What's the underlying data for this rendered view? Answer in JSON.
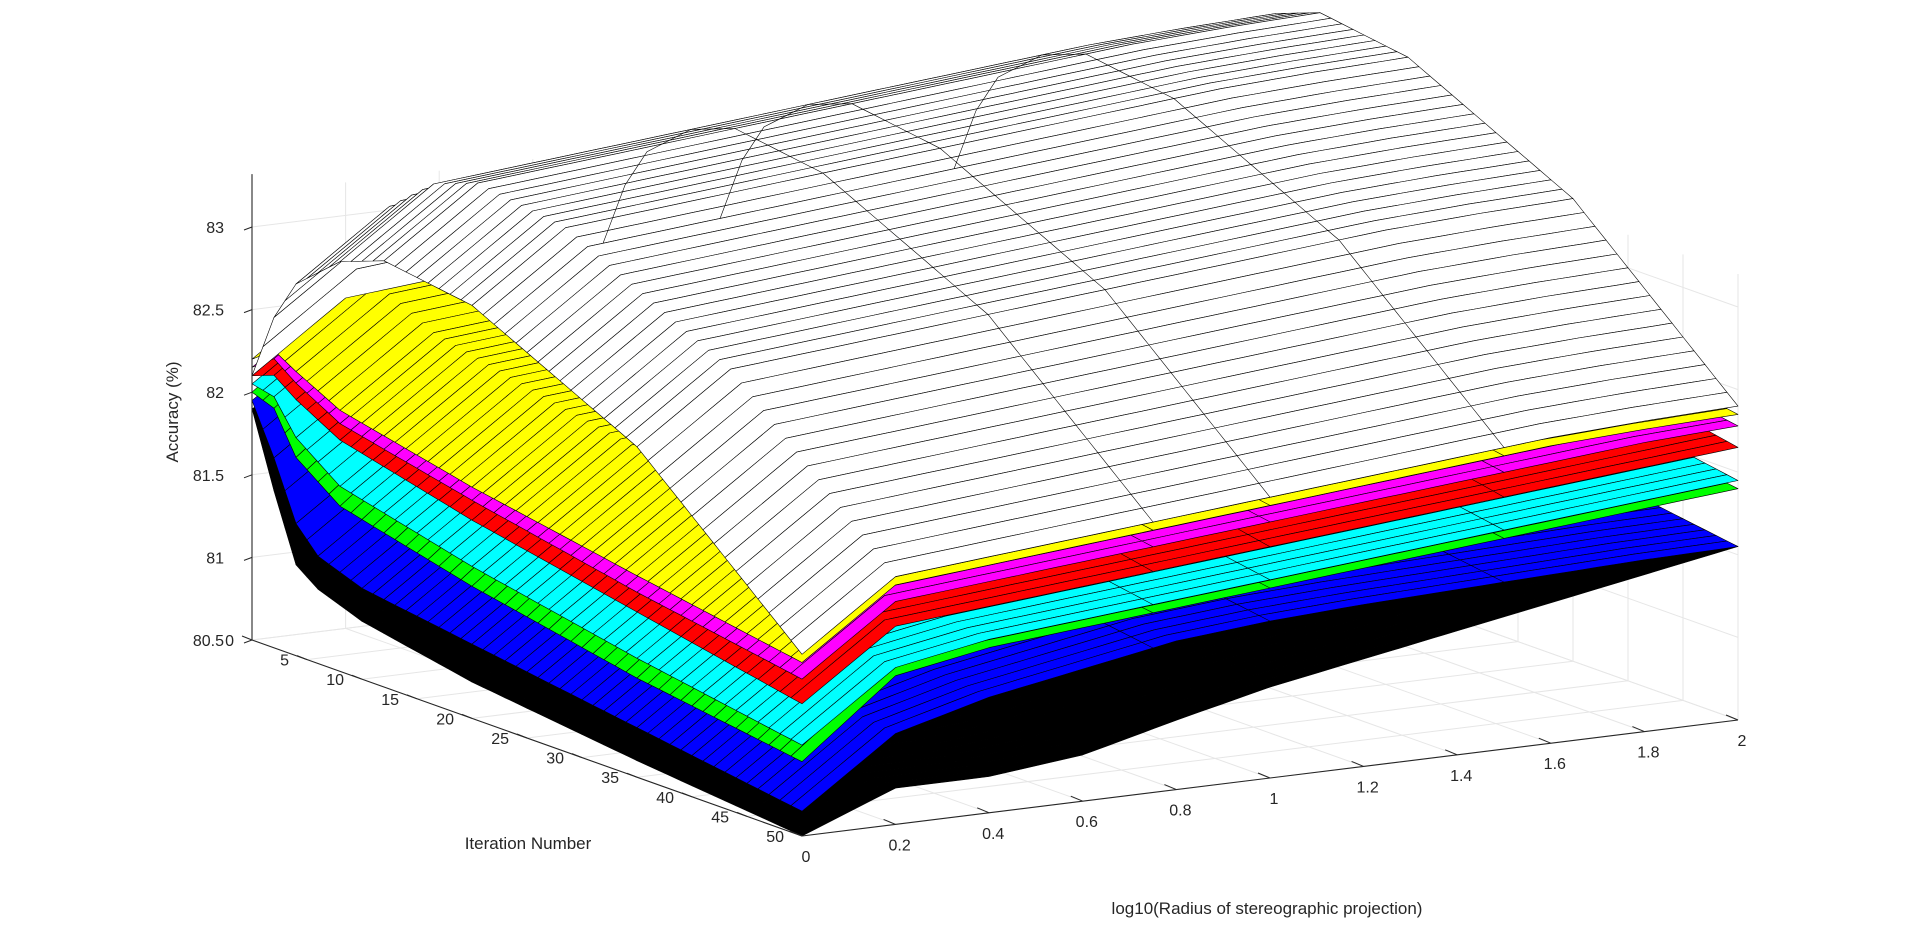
{
  "chart_data": {
    "type": "surface",
    "xlabel": "log10(Radius of stereographic projection)",
    "ylabel": "Iteration Number",
    "zlabel": "Accuracy (%)",
    "xlim": [
      0,
      2
    ],
    "ylim": [
      0,
      50
    ],
    "zlim": [
      80.5,
      83.2
    ],
    "x_ticks": [
      "0",
      "0.2",
      "0.4",
      "0.6",
      "0.8",
      "1",
      "1.2",
      "1.4",
      "1.6",
      "1.8",
      "2"
    ],
    "y_ticks": [
      "0",
      "5",
      "10",
      "15",
      "20",
      "25",
      "30",
      "35",
      "40",
      "45",
      "50"
    ],
    "z_ticks": [
      "80.5",
      "81",
      "81.5",
      "82",
      "82.5",
      "83"
    ],
    "grid": true,
    "x_values": [
      0,
      0.2,
      0.4,
      0.6,
      0.8,
      1.0,
      1.2,
      1.4,
      1.6,
      1.8,
      2.0
    ],
    "series": [
      {
        "color": "#000000",
        "values_at_iteration_50": [
          80.5,
          80.72,
          80.72,
          80.78,
          80.92,
          81.05,
          81.15,
          81.25,
          81.35,
          81.45,
          81.55
        ],
        "iteration_profile": [
          [
            0,
            81.9
          ],
          [
            2,
            81.45
          ],
          [
            4,
            81.05
          ],
          [
            6,
            80.95
          ],
          [
            10,
            80.85
          ],
          [
            20,
            80.72
          ],
          [
            35,
            80.6
          ],
          [
            50,
            80.5
          ]
        ]
      },
      {
        "color": "#0000ff",
        "values_at_iteration_50": [
          80.65,
          81.05,
          81.2,
          81.3,
          81.4,
          81.45,
          81.48,
          81.5,
          81.52,
          81.54,
          81.55
        ],
        "iteration_profile": [
          [
            0,
            81.95
          ],
          [
            2,
            81.65
          ],
          [
            4,
            81.3
          ],
          [
            6,
            81.15
          ],
          [
            10,
            81.05
          ],
          [
            20,
            80.95
          ],
          [
            35,
            80.8
          ],
          [
            50,
            80.65
          ]
        ]
      },
      {
        "color": "#00ff00",
        "values_at_iteration_50": [
          80.95,
          81.4,
          81.5,
          81.55,
          81.6,
          81.65,
          81.7,
          81.75,
          81.8,
          81.85,
          81.9
        ],
        "iteration_profile": [
          [
            0,
            82.0
          ],
          [
            2,
            81.95
          ],
          [
            4,
            81.7
          ],
          [
            8,
            81.5
          ],
          [
            20,
            81.3
          ],
          [
            35,
            81.1
          ],
          [
            50,
            80.95
          ]
        ]
      },
      {
        "color": "#00ffff",
        "values_at_iteration_50": [
          81.05,
          81.45,
          81.55,
          81.6,
          81.65,
          81.7,
          81.75,
          81.8,
          81.85,
          81.9,
          81.95
        ],
        "iteration_profile": [
          [
            0,
            82.05
          ],
          [
            2,
            82.02
          ],
          [
            4,
            81.82
          ],
          [
            8,
            81.62
          ],
          [
            20,
            81.42
          ],
          [
            35,
            81.22
          ],
          [
            50,
            81.05
          ]
        ]
      },
      {
        "color": "#ff0000",
        "values_at_iteration_50": [
          81.3,
          81.7,
          81.75,
          81.8,
          81.85,
          81.9,
          81.95,
          82.0,
          82.05,
          82.1,
          82.15
        ],
        "iteration_profile": [
          [
            0,
            82.1
          ],
          [
            2,
            82.15
          ],
          [
            4,
            82.05
          ],
          [
            8,
            81.9
          ],
          [
            20,
            81.7
          ],
          [
            35,
            81.5
          ],
          [
            50,
            81.3
          ]
        ]
      },
      {
        "color": "#ff00ff",
        "values_at_iteration_50": [
          81.45,
          81.85,
          81.9,
          81.95,
          82.0,
          82.05,
          82.1,
          82.15,
          82.2,
          82.25,
          82.28
        ],
        "iteration_profile": [
          [
            0,
            82.15
          ],
          [
            2,
            82.25
          ],
          [
            4,
            82.15
          ],
          [
            8,
            82.0
          ],
          [
            20,
            81.82
          ],
          [
            35,
            81.62
          ],
          [
            50,
            81.45
          ]
        ]
      },
      {
        "color": "#ffff00",
        "values_at_iteration_50": [
          81.55,
          81.95,
          82.0,
          82.05,
          82.1,
          82.15,
          82.2,
          82.25,
          82.3,
          82.33,
          82.35
        ],
        "iteration_profile": [
          [
            0,
            82.2
          ],
          [
            2,
            82.3
          ],
          [
            4,
            82.22
          ],
          [
            8,
            82.08
          ],
          [
            20,
            81.9
          ],
          [
            35,
            81.72
          ],
          [
            50,
            81.55
          ]
        ]
      },
      {
        "color": "#ffffff",
        "values_at_iteration_50": [
          81.6,
          82.0,
          82.05,
          82.1,
          82.15,
          82.2,
          82.25,
          82.3,
          82.35,
          82.38,
          82.4
        ],
        "iteration_profile": [
          [
            0,
            82.1
          ],
          [
            2,
            82.5
          ],
          [
            4,
            82.75
          ],
          [
            8,
            82.98
          ],
          [
            12,
            83.08
          ],
          [
            20,
            83.0
          ],
          [
            35,
            82.5
          ],
          [
            50,
            81.6
          ]
        ]
      }
    ]
  }
}
